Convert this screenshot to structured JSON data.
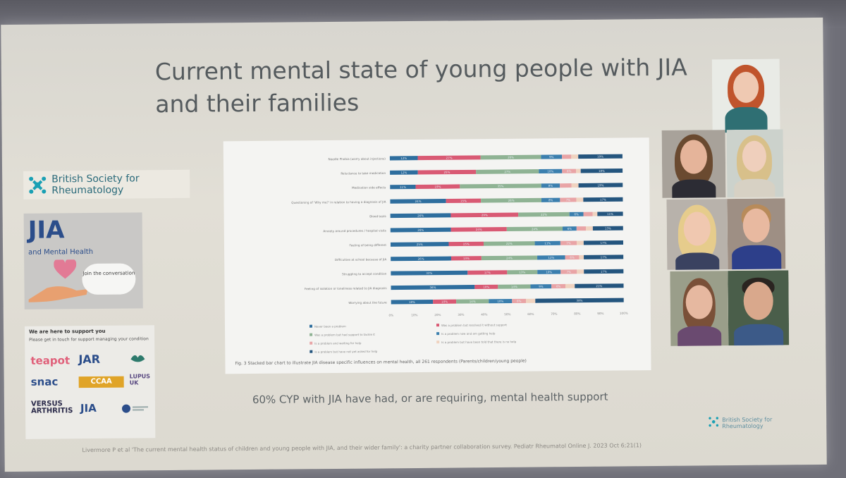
{
  "slide": {
    "title": "Current mental state of young people with JIA and their families",
    "footer_note": "60% CYP with JIA have had, or are requiring, mental health support",
    "citation": "Livermore P et al 'The current mental health status of children and young people with JIA, and their wider family': a charity partner collaboration survey. Pediatr Rheumatol Online J. 2023 Oct 6;21(1)"
  },
  "bsr_badge": {
    "line1": "British Society for",
    "line2": "Rheumatology"
  },
  "bsr_small": {
    "line1": "British Society for",
    "line2": "Rheumatology"
  },
  "jia_card": {
    "title": "JIA",
    "subtitle": "and Mental Health",
    "bubble": "Join the conversation"
  },
  "support_card": {
    "heading": "We are here to support you",
    "text": "Please get in touch for support managing your condition",
    "logos": [
      "teapot",
      "JAR",
      "snac",
      "CCAA",
      "LUPUS UK",
      "VERSUS ARTHRITIS",
      "JIA"
    ]
  },
  "colors": {
    "dark_blue": "#2e6e9e",
    "pink": "#d95a74",
    "green": "#8fb394",
    "teal_blue": "#3b7fae",
    "light_pink": "#e9a4a6",
    "navy": "#24557e"
  },
  "chart_data": {
    "type": "bar",
    "orientation": "horizontal",
    "stacked": true,
    "xlim": [
      0,
      100
    ],
    "x_ticks": [
      "0%",
      "10%",
      "20%",
      "30%",
      "40%",
      "50%",
      "60%",
      "70%",
      "80%",
      "90%",
      "100%"
    ],
    "categories": [
      "Needle Phobia (worry about injections)",
      "Reluctance to take medication",
      "Medication side effects",
      "Questioning of 'Why me?' in relation to having a diagnosis of JIA",
      "Blood tests",
      "Anxiety around procedures / hospital visits",
      "Feeling of being different",
      "Difficulties at school because of JIA",
      "Struggling to accept condition",
      "Feeling of isolation or loneliness related to JIA diagnosis",
      "Worrying about the future"
    ],
    "series": [
      {
        "name": "Never been a problem",
        "color": "#2e6e9e",
        "values": [
          12,
          12,
          11,
          24,
          26,
          26,
          25,
          26,
          33,
          36,
          18
        ]
      },
      {
        "name": "Was a problem but resolved it without support",
        "color": "#d95a74",
        "values": [
          27,
          25,
          19,
          15,
          29,
          24,
          15,
          13,
          17,
          10,
          10
        ]
      },
      {
        "name": "Was a problem but had support to tackle it",
        "color": "#8fb394",
        "values": [
          26,
          27,
          35,
          26,
          22,
          24,
          22,
          24,
          13,
          14,
          14
        ]
      },
      {
        "name": "Is a problem now and am getting help",
        "color": "#3b7fae",
        "values": [
          9,
          10,
          8,
          8,
          6,
          6,
          11,
          12,
          10,
          9,
          10
        ]
      },
      {
        "name": "Is a problem and waiting for help",
        "color": "#e9a4a6",
        "values": [
          4,
          6,
          5,
          7,
          4,
          4,
          7,
          6,
          7,
          6,
          6
        ]
      },
      {
        "name": "Is a problem but have been told that there is no help",
        "color": "#f0d3c0",
        "values": [
          3,
          2,
          3,
          3,
          2,
          3,
          3,
          2,
          3,
          4,
          4
        ]
      },
      {
        "name": "Is a problem but have not yet asked for help",
        "color": "#24557e",
        "values": [
          19,
          18,
          19,
          17,
          11,
          13,
          17,
          17,
          17,
          21,
          38
        ]
      }
    ],
    "caption": "Fig. 3 Stacked bar chart to illustrate JIA disease specific influences on mental health, all 261 respondents (Parents/children/young people)"
  }
}
